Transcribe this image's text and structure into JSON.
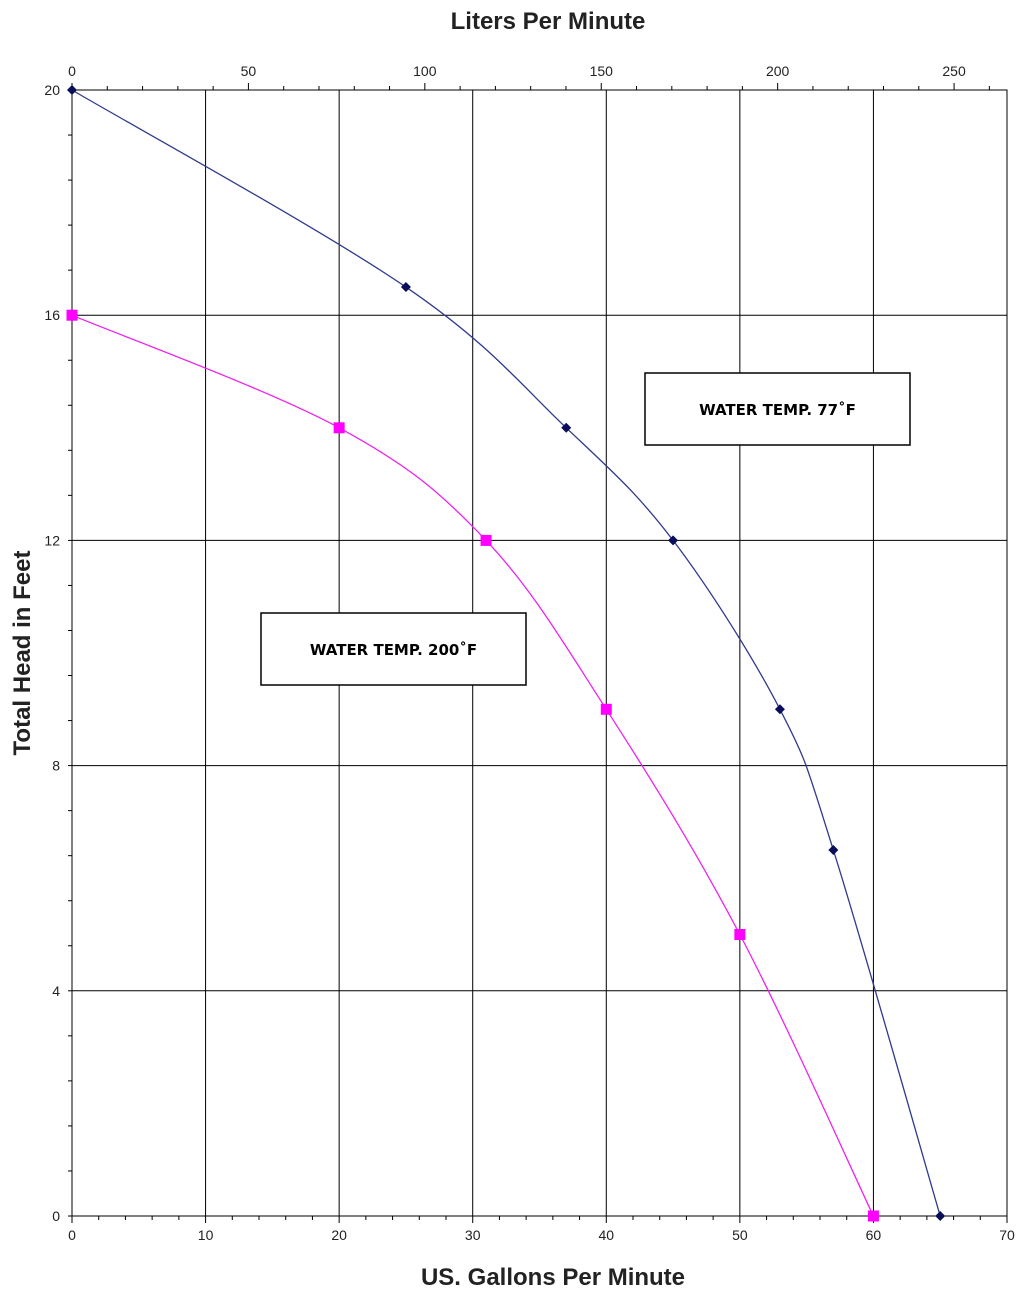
{
  "chart_data": {
    "type": "line",
    "title": "",
    "xlabel": "US. Gallons Per Minute",
    "x2label": "Liters Per Minute",
    "ylabel": "Total Head in Feet",
    "xlim": [
      0,
      70
    ],
    "x2lim": [
      0,
      265
    ],
    "ylim": [
      0,
      20
    ],
    "x_ticks": [
      0,
      10,
      20,
      30,
      40,
      50,
      60,
      70
    ],
    "x2_ticks": [
      0,
      50,
      100,
      150,
      200,
      250
    ],
    "y_ticks": [
      0,
      4,
      8,
      12,
      16,
      20
    ],
    "grid": true,
    "series": [
      {
        "color": "#303a8c",
        "marker_color": "#0a0e5a",
        "marker": "diamond",
        "points": [
          [
            0,
            20
          ],
          [
            25,
            16.5
          ],
          [
            37,
            14
          ],
          [
            45,
            12
          ],
          [
            53,
            9
          ],
          [
            57,
            6.5
          ],
          [
            65,
            0
          ]
        ]
      },
      {
        "color": "#ee22ee",
        "marker_color": "#ff00ff",
        "marker": "square",
        "points": [
          [
            0,
            16
          ],
          [
            20,
            14
          ],
          [
            31,
            12
          ],
          [
            40,
            9
          ],
          [
            50,
            5
          ],
          [
            60,
            0
          ]
        ]
      }
    ],
    "annotations": [
      {
        "text": "WATER TEMP. 77˚F"
      },
      {
        "text": "WATER TEMP. 200˚F"
      }
    ]
  }
}
